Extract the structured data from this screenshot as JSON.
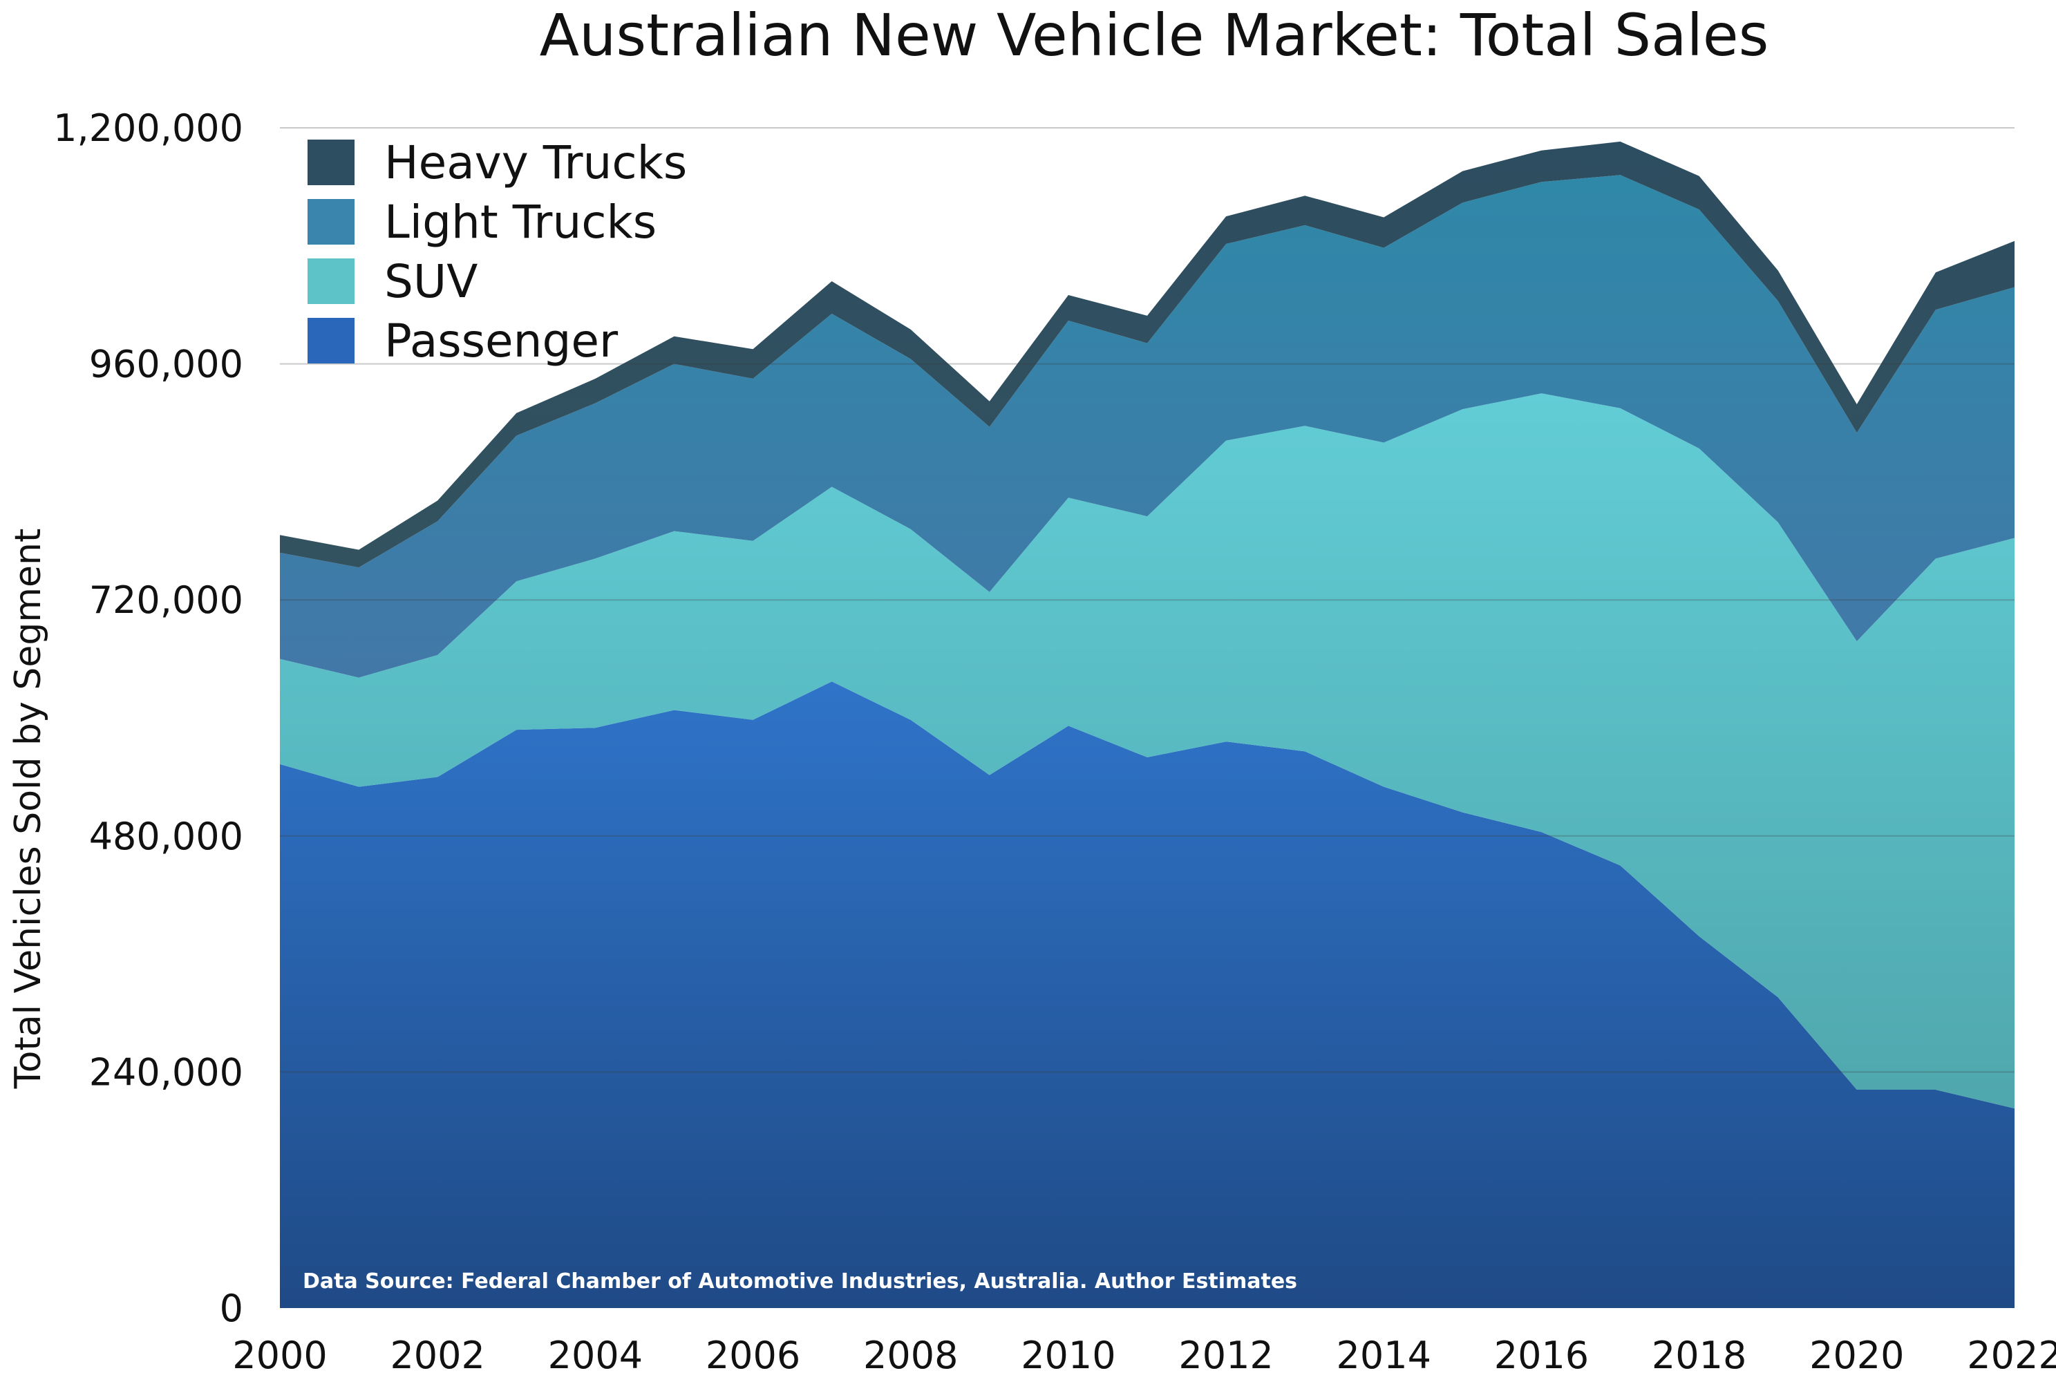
{
  "chart_data": {
    "type": "area",
    "stacked": true,
    "title": "Australian New Vehicle Market: Total Sales",
    "xlabel": "",
    "ylabel": "Total Vehicles Sold by Segment",
    "ylim": [
      0,
      1200000
    ],
    "yticks": [
      0,
      240000,
      480000,
      720000,
      960000,
      1200000
    ],
    "ytick_labels": [
      "0",
      "240,000",
      "480,000",
      "720,000",
      "960,000",
      "1,200,000"
    ],
    "x": [
      2000,
      2001,
      2002,
      2003,
      2004,
      2005,
      2006,
      2007,
      2008,
      2009,
      2010,
      2011,
      2012,
      2013,
      2014,
      2015,
      2016,
      2017,
      2018,
      2019,
      2020,
      2021,
      2022
    ],
    "xticks": [
      2000,
      2002,
      2004,
      2006,
      2008,
      2010,
      2012,
      2014,
      2016,
      2018,
      2020,
      2022
    ],
    "xtick_labels": [
      "2000",
      "2002",
      "2004",
      "2006",
      "2008",
      "2010",
      "2012",
      "2014",
      "2016",
      "2018",
      "2020",
      "2022"
    ],
    "series": [
      {
        "name": "Passenger",
        "color": "#2a6bbd",
        "values": [
          553000,
          530000,
          540000,
          588000,
          590000,
          608000,
          598000,
          637000,
          598000,
          542000,
          592000,
          560000,
          576000,
          566000,
          530000,
          504000,
          484000,
          450000,
          378000,
          316000,
          222000,
          222000,
          203000
        ]
      },
      {
        "name": "SUV",
        "color": "#5fc6cc",
        "values": [
          107000,
          111000,
          124000,
          151000,
          172000,
          182000,
          182000,
          198000,
          194000,
          186000,
          232000,
          245000,
          306000,
          331000,
          350000,
          410000,
          446000,
          465000,
          496000,
          483000,
          456000,
          540000,
          580000
        ]
      },
      {
        "name": "Light Trucks",
        "color": "#3a8ab0",
        "values": [
          108000,
          112000,
          136000,
          148000,
          158000,
          170000,
          165000,
          176000,
          173000,
          168000,
          180000,
          176000,
          200000,
          204000,
          198000,
          210000,
          215000,
          237000,
          243000,
          225000,
          212000,
          253000,
          255000
        ]
      },
      {
        "name": "Heavy Trucks",
        "color": "#2d4d60",
        "values": [
          18000,
          18000,
          21000,
          23000,
          25000,
          28000,
          30000,
          33000,
          30000,
          26000,
          26000,
          28000,
          28000,
          30000,
          31000,
          32000,
          32000,
          34000,
          34000,
          31000,
          29000,
          38000,
          47000
        ]
      }
    ],
    "legend": {
      "placement": "top-left",
      "entries": [
        "Heavy Trucks",
        "Light Trucks",
        "SUV",
        "Passenger"
      ]
    },
    "grid": true,
    "annotation": "Data Source: Federal Chamber of Automotive Industries, Australia.  Author Estimates"
  }
}
